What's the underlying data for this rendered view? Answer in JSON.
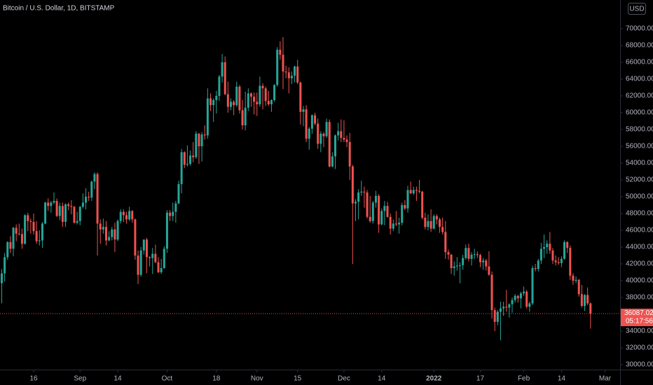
{
  "chart_data": {
    "type": "candlestick",
    "title": "Bitcoin / U.S. Dollar, 1D, BITSTAMP",
    "currency": "USD",
    "countdown": "05:17:56",
    "up_color": "#26a69a",
    "down_color": "#ef5350",
    "xlim": [
      -0.6,
      213.2
    ],
    "xticks": [
      {
        "value": 11,
        "label": "16"
      },
      {
        "value": 27,
        "label": "Sep"
      },
      {
        "value": 40,
        "label": "14"
      },
      {
        "value": 57,
        "label": "Oct"
      },
      {
        "value": 74,
        "label": "18"
      },
      {
        "value": 88,
        "label": "Nov"
      },
      {
        "value": 102,
        "label": "15"
      },
      {
        "value": 118,
        "label": "Dec"
      },
      {
        "value": 131,
        "label": "14"
      },
      {
        "value": 149,
        "label": "2022"
      },
      {
        "value": 165,
        "label": "17"
      },
      {
        "value": 180,
        "label": "Feb"
      },
      {
        "value": 193,
        "label": "14"
      },
      {
        "value": 208,
        "label": "Mar"
      }
    ],
    "ylim": [
      29417,
      73417
    ],
    "yticks": [
      {
        "value": 30000,
        "label": "30000.00"
      },
      {
        "value": 32000,
        "label": "32000.00"
      },
      {
        "value": 34000,
        "label": "34000.00"
      },
      {
        "value": 36000,
        "label": "36000.00"
      },
      {
        "value": 38000,
        "label": "38000.00"
      },
      {
        "value": 40000,
        "label": "40000.00"
      },
      {
        "value": 42000,
        "label": "42000.00"
      },
      {
        "value": 44000,
        "label": "44000.00"
      },
      {
        "value": 46000,
        "label": "46000.00"
      },
      {
        "value": 48000,
        "label": "48000.00"
      },
      {
        "value": 50000,
        "label": "50000.00"
      },
      {
        "value": 52000,
        "label": "52000.00"
      },
      {
        "value": 54000,
        "label": "54000.00"
      },
      {
        "value": 56000,
        "label": "56000.00"
      },
      {
        "value": 58000,
        "label": "58000.00"
      },
      {
        "value": 60000,
        "label": "60000.00"
      },
      {
        "value": 62000,
        "label": "62000.00"
      },
      {
        "value": 64000,
        "label": "64000.00"
      },
      {
        "value": 66000,
        "label": "66000.00"
      },
      {
        "value": 68000,
        "label": "68000.00"
      },
      {
        "value": 70000,
        "label": "70000.00"
      }
    ],
    "ohlc": [
      [
        39700,
        41400,
        37300,
        40870
      ],
      [
        40870,
        43300,
        39900,
        42800
      ],
      [
        42800,
        44700,
        42500,
        44600
      ],
      [
        44600,
        45300,
        43300,
        43800
      ],
      [
        43800,
        46400,
        42900,
        46300
      ],
      [
        46300,
        46700,
        44700,
        45600
      ],
      [
        45600,
        46800,
        45400,
        45550
      ],
      [
        45550,
        46200,
        43800,
        44400
      ],
      [
        44400,
        47900,
        44300,
        47800
      ],
      [
        47800,
        48100,
        45900,
        47100
      ],
      [
        47100,
        47400,
        45600,
        47000
      ],
      [
        47000,
        48000,
        45500,
        45900
      ],
      [
        45900,
        47100,
        44400,
        44700
      ],
      [
        44700,
        46000,
        44200,
        44800
      ],
      [
        44800,
        47000,
        43900,
        46800
      ],
      [
        46800,
        49400,
        46700,
        49300
      ],
      [
        49300,
        49800,
        48300,
        48900
      ],
      [
        48900,
        49500,
        48100,
        49300
      ],
      [
        49300,
        50500,
        49100,
        49500
      ],
      [
        49500,
        49800,
        47600,
        47700
      ],
      [
        47700,
        49300,
        47200,
        48900
      ],
      [
        48900,
        49300,
        46400,
        47000
      ],
      [
        47000,
        49200,
        46400,
        49100
      ],
      [
        49100,
        49300,
        48400,
        48900
      ],
      [
        48900,
        49600,
        47900,
        48800
      ],
      [
        48800,
        48900,
        46800,
        46900
      ],
      [
        46900,
        48200,
        46700,
        47100
      ],
      [
        47100,
        48900,
        46600,
        48800
      ],
      [
        48800,
        50400,
        48600,
        49300
      ],
      [
        49300,
        51000,
        48500,
        50000
      ],
      [
        50000,
        50600,
        49500,
        49900
      ],
      [
        49900,
        51900,
        49500,
        51800
      ],
      [
        51800,
        52900,
        50900,
        52700
      ],
      [
        52700,
        52900,
        43000,
        46800
      ],
      [
        46800,
        47300,
        44400,
        46100
      ],
      [
        46100,
        47400,
        45600,
        46400
      ],
      [
        46400,
        47100,
        44200,
        44800
      ],
      [
        44800,
        45900,
        44700,
        45200
      ],
      [
        45200,
        46400,
        44800,
        46100
      ],
      [
        46100,
        46900,
        43400,
        44900
      ],
      [
        44900,
        47300,
        44700,
        47100
      ],
      [
        47100,
        48500,
        46800,
        48200
      ],
      [
        48200,
        48500,
        47000,
        47800
      ],
      [
        47800,
        48200,
        46800,
        47300
      ],
      [
        47300,
        48800,
        47100,
        48300
      ],
      [
        48300,
        48400,
        46900,
        47300
      ],
      [
        47300,
        47400,
        42500,
        43000
      ],
      [
        43000,
        43600,
        39600,
        40700
      ],
      [
        40700,
        44000,
        40500,
        43600
      ],
      [
        43600,
        44900,
        43100,
        44900
      ],
      [
        44900,
        45100,
        40900,
        42800
      ],
      [
        42800,
        42900,
        41700,
        42700
      ],
      [
        42700,
        43900,
        40800,
        43200
      ],
      [
        43200,
        44300,
        42100,
        42200
      ],
      [
        42200,
        42800,
        40900,
        41000
      ],
      [
        41000,
        42600,
        40800,
        41500
      ],
      [
        41500,
        44100,
        41400,
        43800
      ],
      [
        43800,
        48400,
        43300,
        48100
      ],
      [
        48100,
        48400,
        47100,
        47700
      ],
      [
        47700,
        49300,
        47100,
        48200
      ],
      [
        48200,
        49500,
        46900,
        49200
      ],
      [
        49200,
        51900,
        49100,
        51500
      ],
      [
        51500,
        55700,
        50400,
        55300
      ],
      [
        55300,
        55400,
        53400,
        53800
      ],
      [
        53800,
        56100,
        53600,
        53900
      ],
      [
        53900,
        55500,
        53700,
        54900
      ],
      [
        54900,
        56500,
        54100,
        54700
      ],
      [
        54700,
        57800,
        54500,
        57500
      ],
      [
        57500,
        57600,
        53900,
        56000
      ],
      [
        56000,
        57700,
        54200,
        57400
      ],
      [
        57400,
        58500,
        56800,
        57300
      ],
      [
        57300,
        62900,
        56900,
        61700
      ],
      [
        61700,
        62300,
        60200,
        60900
      ],
      [
        60900,
        61700,
        58900,
        61500
      ],
      [
        61500,
        62600,
        59900,
        62000
      ],
      [
        62000,
        64500,
        61400,
        64300
      ],
      [
        64300,
        67000,
        63600,
        66000
      ],
      [
        66000,
        66700,
        62100,
        62200
      ],
      [
        62200,
        63700,
        60000,
        60700
      ],
      [
        60700,
        61700,
        60300,
        61300
      ],
      [
        61300,
        61500,
        59700,
        60900
      ],
      [
        60900,
        63700,
        60700,
        63100
      ],
      [
        63100,
        63300,
        59900,
        60300
      ],
      [
        60300,
        61500,
        58000,
        58500
      ],
      [
        58500,
        62500,
        57900,
        60600
      ],
      [
        60600,
        62900,
        60200,
        62300
      ],
      [
        62300,
        62400,
        60700,
        61900
      ],
      [
        61900,
        62400,
        59800,
        61300
      ],
      [
        61300,
        62400,
        59600,
        61000
      ],
      [
        61000,
        64300,
        60700,
        63200
      ],
      [
        63200,
        63500,
        60400,
        62900
      ],
      [
        62900,
        63100,
        60800,
        61400
      ],
      [
        61400,
        62600,
        60800,
        61000
      ],
      [
        61000,
        61600,
        60100,
        61500
      ],
      [
        61500,
        63400,
        61300,
        63300
      ],
      [
        63300,
        67800,
        63100,
        67500
      ],
      [
        67500,
        68500,
        66300,
        66900
      ],
      [
        66900,
        69000,
        62800,
        64900
      ],
      [
        64900,
        65600,
        64100,
        64800
      ],
      [
        64800,
        65400,
        62300,
        64100
      ],
      [
        64100,
        64900,
        63400,
        64400
      ],
      [
        64400,
        65600,
        63600,
        65500
      ],
      [
        65500,
        66300,
        63400,
        63600
      ],
      [
        63600,
        63700,
        58600,
        60100
      ],
      [
        60100,
        60800,
        58400,
        60400
      ],
      [
        60400,
        60900,
        56500,
        56900
      ],
      [
        56900,
        58300,
        55600,
        58100
      ],
      [
        58100,
        59800,
        57500,
        59700
      ],
      [
        59700,
        60000,
        58500,
        58700
      ],
      [
        58700,
        59300,
        55700,
        56300
      ],
      [
        56300,
        57800,
        55300,
        57500
      ],
      [
        57500,
        57700,
        55900,
        57200
      ],
      [
        57200,
        59300,
        57000,
        58900
      ],
      [
        58900,
        59200,
        53500,
        53600
      ],
      [
        53600,
        55300,
        53500,
        54800
      ],
      [
        54800,
        57400,
        53300,
        57300
      ],
      [
        57300,
        58800,
        56700,
        57800
      ],
      [
        57800,
        59200,
        56500,
        57000
      ],
      [
        57000,
        59100,
        56500,
        56800
      ],
      [
        56800,
        57300,
        55900,
        56500
      ],
      [
        56500,
        57600,
        52000,
        53600
      ],
      [
        53600,
        53800,
        42000,
        49200
      ],
      [
        49200,
        49700,
        47100,
        49400
      ],
      [
        49400,
        50900,
        47300,
        50500
      ],
      [
        50500,
        51900,
        50100,
        50600
      ],
      [
        50600,
        51200,
        48700,
        50500
      ],
      [
        50500,
        50800,
        47400,
        47600
      ],
      [
        47600,
        50100,
        46900,
        47100
      ],
      [
        47100,
        49500,
        46800,
        49300
      ],
      [
        49300,
        50700,
        48700,
        50100
      ],
      [
        50100,
        50300,
        45700,
        46700
      ],
      [
        46700,
        48600,
        46600,
        48300
      ],
      [
        48300,
        49500,
        46600,
        48900
      ],
      [
        48900,
        49400,
        47500,
        47600
      ],
      [
        47600,
        48000,
        45500,
        46200
      ],
      [
        46200,
        47300,
        45900,
        46800
      ],
      [
        46800,
        48300,
        46500,
        46700
      ],
      [
        46700,
        47500,
        45600,
        46900
      ],
      [
        46900,
        49300,
        46600,
        49000
      ],
      [
        49000,
        49600,
        48400,
        48600
      ],
      [
        48600,
        51300,
        48100,
        50800
      ],
      [
        50800,
        51800,
        50300,
        50400
      ],
      [
        50400,
        51200,
        50200,
        50800
      ],
      [
        50800,
        51200,
        49500,
        50700
      ],
      [
        50700,
        52000,
        50400,
        50600
      ],
      [
        50600,
        50700,
        47300,
        47500
      ],
      [
        47500,
        48100,
        46100,
        46400
      ],
      [
        46400,
        47900,
        46000,
        47100
      ],
      [
        47100,
        48500,
        45800,
        46200
      ],
      [
        46200,
        47900,
        46100,
        47700
      ],
      [
        47700,
        47900,
        46700,
        47300
      ],
      [
        47300,
        47500,
        45700,
        46400
      ],
      [
        46400,
        47500,
        45500,
        45800
      ],
      [
        45800,
        47100,
        42600,
        43400
      ],
      [
        43400,
        43700,
        42500,
        43100
      ],
      [
        43100,
        43200,
        40800,
        41500
      ],
      [
        41500,
        42300,
        40600,
        41700
      ],
      [
        41700,
        42800,
        41200,
        41800
      ],
      [
        41800,
        42200,
        39700,
        41850
      ],
      [
        41850,
        43100,
        41300,
        42700
      ],
      [
        42700,
        44300,
        42500,
        43900
      ],
      [
        43900,
        44400,
        42300,
        42600
      ],
      [
        42600,
        43400,
        41800,
        43100
      ],
      [
        43100,
        43800,
        42600,
        43150
      ],
      [
        43150,
        43500,
        42700,
        43050
      ],
      [
        43050,
        43200,
        41600,
        42200
      ],
      [
        42200,
        42700,
        41300,
        42400
      ],
      [
        42400,
        42600,
        41200,
        41700
      ],
      [
        41700,
        43500,
        40600,
        40700
      ],
      [
        40700,
        41100,
        35500,
        36500
      ],
      [
        36500,
        36800,
        34000,
        35100
      ],
      [
        35100,
        36500,
        34700,
        36300
      ],
      [
        36300,
        37500,
        32900,
        36700
      ],
      [
        36700,
        37500,
        35800,
        36900
      ],
      [
        36900,
        38900,
        36300,
        36800
      ],
      [
        36800,
        37300,
        35600,
        37200
      ],
      [
        37200,
        38000,
        36200,
        37700
      ],
      [
        37700,
        38400,
        37400,
        38200
      ],
      [
        38200,
        38300,
        37400,
        37900
      ],
      [
        37900,
        38700,
        36700,
        38500
      ],
      [
        38500,
        39300,
        38200,
        38700
      ],
      [
        38700,
        38900,
        36700,
        36900
      ],
      [
        36900,
        37500,
        36300,
        37300
      ],
      [
        37300,
        41800,
        37100,
        41500
      ],
      [
        41500,
        42000,
        41100,
        41400
      ],
      [
        41400,
        42600,
        41100,
        42400
      ],
      [
        42400,
        44500,
        42000,
        43800
      ],
      [
        43800,
        45500,
        42700,
        44000
      ],
      [
        44000,
        44800,
        43200,
        44400
      ],
      [
        44400,
        45800,
        43200,
        43600
      ],
      [
        43600,
        43900,
        42000,
        42400
      ],
      [
        42400,
        43000,
        41800,
        42200
      ],
      [
        42200,
        42800,
        41900,
        42100
      ],
      [
        42100,
        42900,
        41600,
        42600
      ],
      [
        42600,
        44800,
        42500,
        44600
      ],
      [
        44600,
        44700,
        43300,
        43900
      ],
      [
        43900,
        44200,
        40100,
        40600
      ],
      [
        40600,
        40900,
        39500,
        40000
      ],
      [
        40000,
        40500,
        39700,
        40100
      ],
      [
        40100,
        40200,
        38100,
        38400
      ],
      [
        38400,
        39500,
        36800,
        37000
      ],
      [
        37000,
        38400,
        36400,
        38300
      ],
      [
        38300,
        39200,
        37100,
        37300
      ],
      [
        37300,
        37400,
        34300,
        36087.02
      ]
    ]
  }
}
